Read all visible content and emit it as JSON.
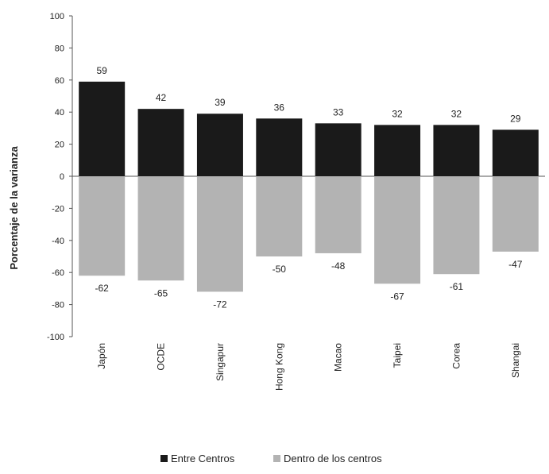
{
  "chart_data": {
    "type": "bar",
    "title": "",
    "xlabel": "",
    "ylabel": "Porcentaje de la varianza",
    "ylim": [
      -100,
      100
    ],
    "yticks": [
      100,
      80,
      60,
      40,
      20,
      0,
      -20,
      -40,
      -60,
      -80,
      -100
    ],
    "categories": [
      "Japón",
      "OCDE",
      "Singapur",
      "Hong Kong",
      "Macao",
      "Taipei",
      "Corea",
      "Shangai"
    ],
    "series": [
      {
        "name": "Entre Centros",
        "color": "#1a1a1a",
        "values": [
          59,
          42,
          39,
          36,
          33,
          32,
          32,
          29
        ]
      },
      {
        "name": "Dentro de los centros",
        "color": "#b3b3b3",
        "values": [
          -62,
          -65,
          -72,
          -50,
          -48,
          -67,
          -61,
          -47
        ]
      }
    ],
    "grid": false,
    "legend_position": "bottom-center"
  }
}
